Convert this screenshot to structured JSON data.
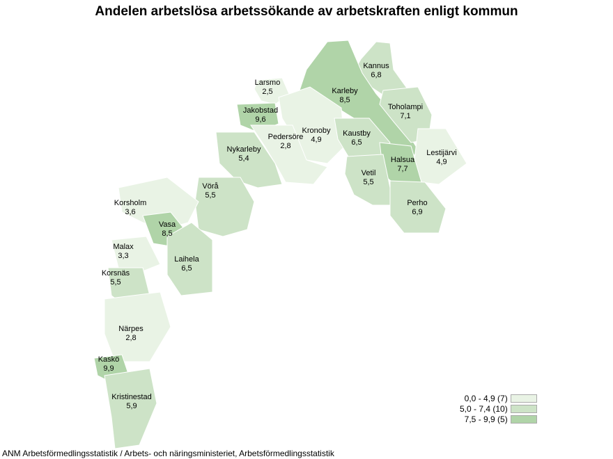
{
  "title": "Andelen arbetslösa arbetssökande av arbetskraften enligt kommun",
  "source": "ANM Arbetsförmedlingsstatistik / Arbets- och näringsministeriet, Arbetsförmedlingsstatistik",
  "colors": {
    "low": "#e9f3e5",
    "mid": "#cde3c7",
    "high": "#b0d4a8",
    "border": "#ffffff"
  },
  "legend": [
    {
      "label": "0,0 - 4,9 (7)",
      "class": "low"
    },
    {
      "label": "5,0 - 7,4 (10)",
      "class": "mid"
    },
    {
      "label": "7,5 - 9,9 (5)",
      "class": "high"
    }
  ],
  "municipalities": [
    {
      "name": "Kannus",
      "value": "6,8",
      "class": "mid"
    },
    {
      "name": "Larsmo",
      "value": "2,5",
      "class": "low"
    },
    {
      "name": "Karleby",
      "value": "8,5",
      "class": "high"
    },
    {
      "name": "Toholampi",
      "value": "7,1",
      "class": "mid"
    },
    {
      "name": "Jakobstad",
      "value": "9,6",
      "class": "high"
    },
    {
      "name": "Kronoby",
      "value": "4,9",
      "class": "low"
    },
    {
      "name": "Pedersöre",
      "value": "2,8",
      "class": "low"
    },
    {
      "name": "Kaustby",
      "value": "6,5",
      "class": "mid"
    },
    {
      "name": "Lestijärvi",
      "value": "4,9",
      "class": "low"
    },
    {
      "name": "Nykarleby",
      "value": "5,4",
      "class": "mid"
    },
    {
      "name": "Halsua",
      "value": "7,7",
      "class": "high"
    },
    {
      "name": "Vetil",
      "value": "5,5",
      "class": "mid"
    },
    {
      "name": "Vörå",
      "value": "5,5",
      "class": "mid"
    },
    {
      "name": "Perho",
      "value": "6,9",
      "class": "mid"
    },
    {
      "name": "Korsholm",
      "value": "3,6",
      "class": "low"
    },
    {
      "name": "Vasa",
      "value": "8,5",
      "class": "high"
    },
    {
      "name": "Malax",
      "value": "3,3",
      "class": "low"
    },
    {
      "name": "Laihela",
      "value": "6,5",
      "class": "mid"
    },
    {
      "name": "Korsnäs",
      "value": "5,5",
      "class": "mid"
    },
    {
      "name": "Närpes",
      "value": "2,8",
      "class": "low"
    },
    {
      "name": "Kaskö",
      "value": "9,9",
      "class": "high"
    },
    {
      "name": "Kristinestad",
      "value": "5,9",
      "class": "mid"
    }
  ]
}
